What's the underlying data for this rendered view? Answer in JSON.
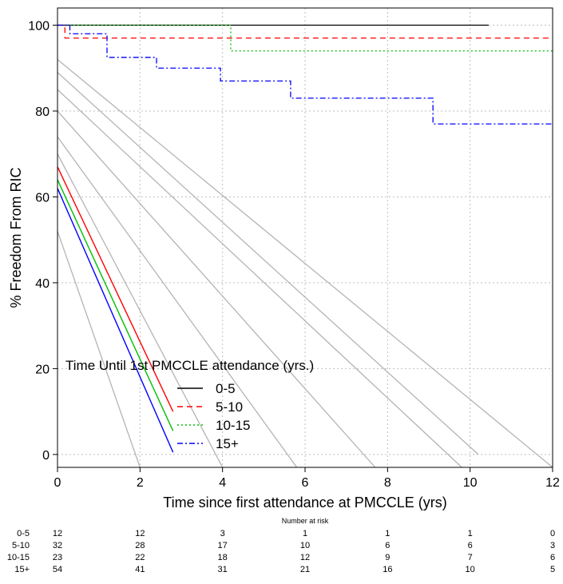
{
  "chart_data": {
    "type": "line",
    "title": "",
    "xlabel": "Time since first attendance at PMCCLE (yrs)",
    "ylabel": "% Freedom From RIC",
    "xlim": [
      0,
      12
    ],
    "ylim": [
      -3,
      104
    ],
    "xticks": [
      0,
      2,
      4,
      6,
      8,
      10,
      12
    ],
    "yticks": [
      0,
      20,
      40,
      60,
      80,
      100
    ],
    "grid": true,
    "legend": {
      "title": "Time Until 1st PMCCLE attendance (yrs.)",
      "placement": "lower-left",
      "entries": [
        "0-5",
        "5-10",
        "10-15",
        "15+"
      ]
    },
    "series": [
      {
        "name": "0-5",
        "color": "#000000",
        "dash": "solid",
        "steps": [
          [
            0,
            100
          ],
          [
            10.45,
            100
          ]
        ]
      },
      {
        "name": "5-10",
        "color": "#ff0000",
        "dash": "dashed",
        "steps": [
          [
            0,
            100
          ],
          [
            0.18,
            97
          ],
          [
            12,
            97
          ]
        ]
      },
      {
        "name": "10-15",
        "color": "#00c000",
        "dash": "dotted",
        "steps": [
          [
            0,
            100
          ],
          [
            4.2,
            94
          ],
          [
            12,
            94
          ]
        ]
      },
      {
        "name": "15+",
        "color": "#0000ff",
        "dash": "dashdot",
        "steps": [
          [
            0,
            100
          ],
          [
            0.3,
            98
          ],
          [
            1.2,
            92.5
          ],
          [
            2.4,
            90
          ],
          [
            3.95,
            87
          ],
          [
            5.65,
            83
          ],
          [
            9.1,
            77
          ],
          [
            12,
            77
          ]
        ]
      }
    ],
    "reference_lines": [
      [
        [
          0,
          52
        ],
        [
          2,
          -3
        ]
      ],
      [
        [
          0,
          70
        ],
        [
          4,
          -3
        ]
      ],
      [
        [
          0,
          74
        ],
        [
          5.8,
          -3
        ]
      ],
      [
        [
          0,
          80
        ],
        [
          7.7,
          -3
        ]
      ],
      [
        [
          0,
          85
        ],
        [
          9.8,
          -3
        ]
      ],
      [
        [
          0,
          89
        ],
        [
          10.2,
          0
        ]
      ],
      [
        [
          0,
          92
        ],
        [
          12,
          -3
        ]
      ]
    ],
    "legend_slopes": [
      {
        "color": "#ff0000",
        "from": [
          0,
          67
        ],
        "to": [
          2.8,
          10
        ]
      },
      {
        "color": "#00c000",
        "from": [
          0,
          64
        ],
        "to": [
          2.8,
          5.5
        ]
      },
      {
        "color": "#0000ff",
        "from": [
          0,
          62
        ],
        "to": [
          2.8,
          0.5
        ]
      }
    ]
  },
  "risk_table": {
    "title": "Number at risk",
    "times": [
      0,
      2,
      4,
      6,
      8,
      10,
      12
    ],
    "rows": [
      {
        "label": "0-5",
        "values": [
          "12",
          "12",
          "3",
          "1",
          "1",
          "1",
          "0"
        ]
      },
      {
        "label": "5-10",
        "values": [
          "32",
          "28",
          "17",
          "10",
          "6",
          "6",
          "3"
        ]
      },
      {
        "label": "10-15",
        "values": [
          "23",
          "22",
          "18",
          "12",
          "9",
          "7",
          "6"
        ]
      },
      {
        "label": "15+",
        "values": [
          "54",
          "41",
          "31",
          "21",
          "16",
          "10",
          "5"
        ]
      }
    ]
  }
}
